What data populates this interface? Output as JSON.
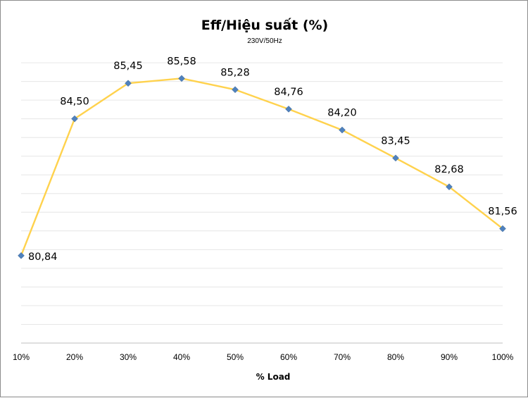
{
  "chart_data": {
    "type": "line",
    "title": "Eff/Hiệu suất (%)",
    "subtitle": "230V/50Hz",
    "xlabel": "% Load",
    "ylabel": "",
    "categories": [
      "10%",
      "20%",
      "30%",
      "40%",
      "50%",
      "60%",
      "70%",
      "80%",
      "90%",
      "100%"
    ],
    "series": [
      {
        "values": [
          80.84,
          84.5,
          85.45,
          85.58,
          85.28,
          84.76,
          84.2,
          83.45,
          82.68,
          81.56
        ],
        "labels": [
          "80,84",
          "84,50",
          "85,45",
          "85,58",
          "85,28",
          "84,76",
          "84,20",
          "83,45",
          "82,68",
          "81,56"
        ],
        "line_color": "#FFD24D",
        "marker_color": "#4F81BD",
        "marker": "diamond"
      }
    ],
    "ylim": [
      78.5,
      87
    ],
    "grid": true,
    "legend": "none"
  }
}
